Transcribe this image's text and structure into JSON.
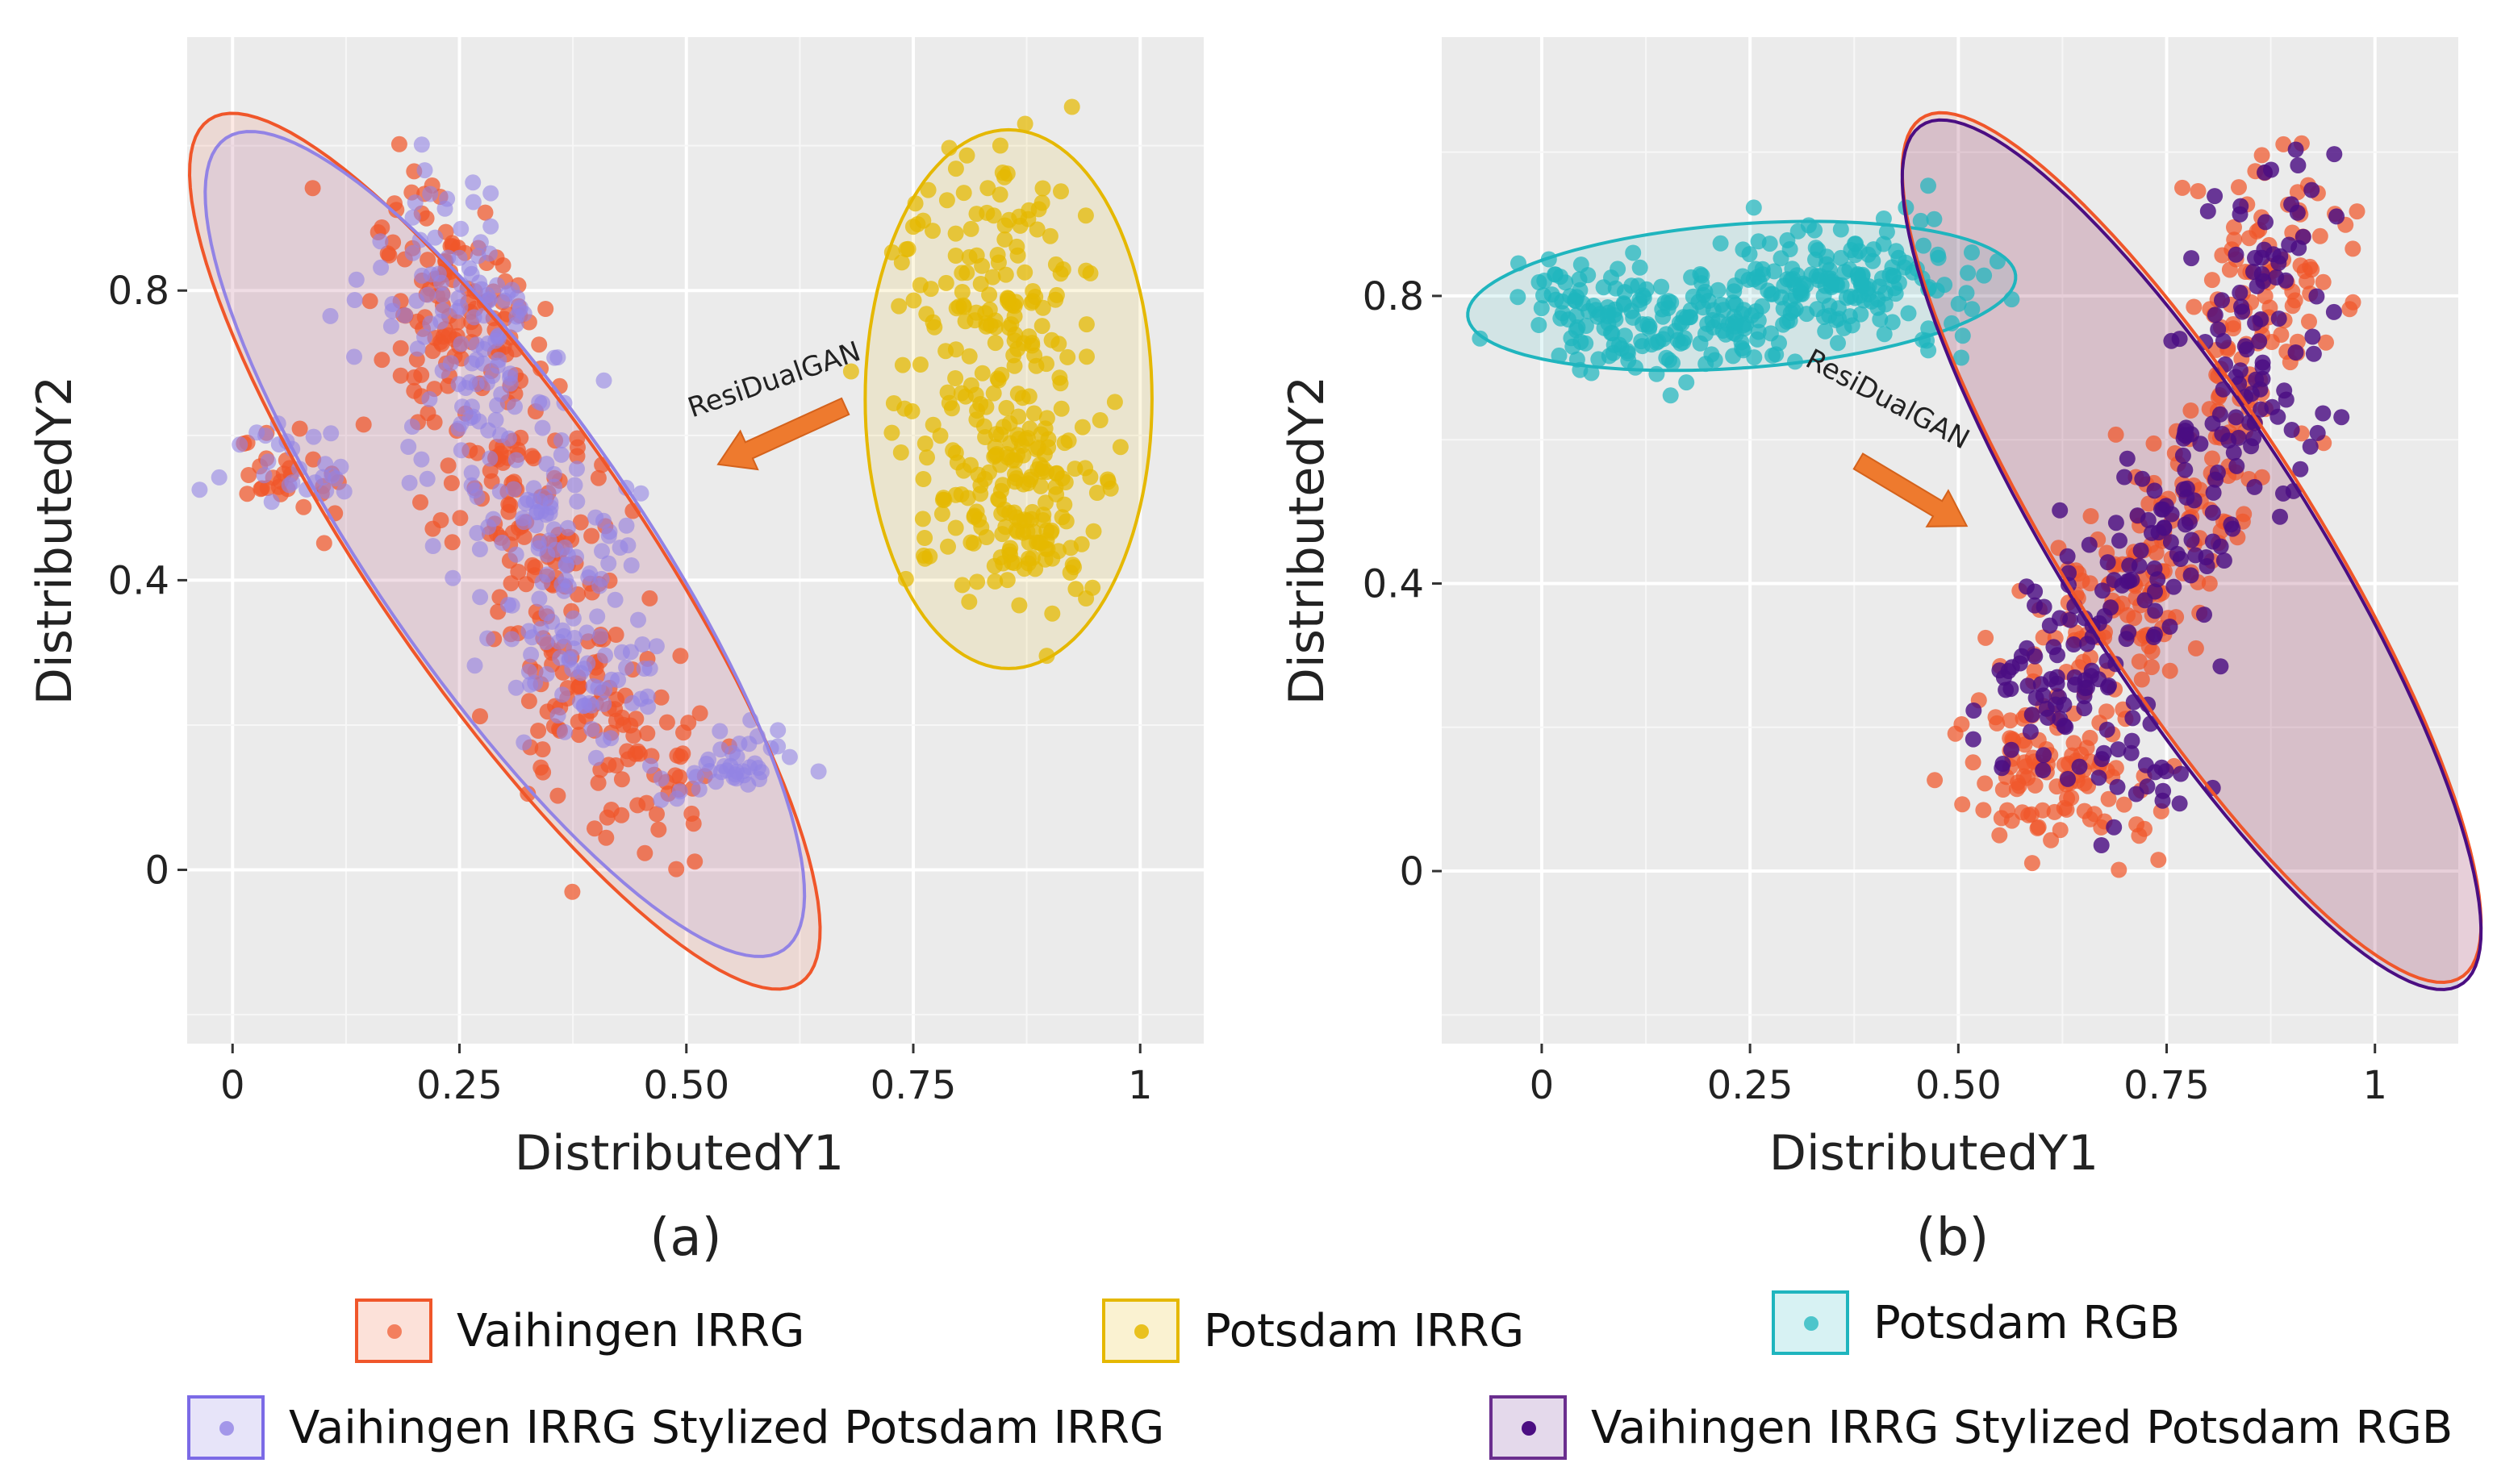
{
  "chart_data": [
    {
      "type": "scatter",
      "panel_label": "(a)",
      "xlabel": "DistributedY1",
      "ylabel": "DistributedY2",
      "xlim": [
        -0.05,
        1.07
      ],
      "ylim": [
        -0.24,
        1.15
      ],
      "xticks": [
        0,
        0.25,
        0.5,
        0.75,
        1
      ],
      "xtick_labels": [
        "0",
        "0.25",
        "0.50",
        "0.75",
        "1"
      ],
      "yticks": [
        0,
        0.4,
        0.8
      ],
      "ytick_labels": [
        "0",
        "0.4",
        "0.8"
      ],
      "annotation": {
        "text": "ResiDualGAN",
        "from": [
          0.675,
          0.64
        ],
        "to": [
          0.535,
          0.56
        ]
      },
      "series": [
        {
          "name": "Vaihingen IRRG",
          "color": "#F0562A",
          "ellipse": {
            "cx": 0.3,
            "cy": 0.44,
            "rx": 0.68,
            "ry": 0.155,
            "angle_deg": -62
          }
        },
        {
          "name": "Vaihingen IRRG Stylized Potsdam IRRG",
          "color": "#9283E5",
          "ellipse": {
            "cx": 0.3,
            "cy": 0.45,
            "rx": 0.64,
            "ry": 0.155,
            "angle_deg": -62
          }
        },
        {
          "name": "Potsdam IRRG",
          "color": "#E5B800",
          "ellipse": {
            "cx": 0.855,
            "cy": 0.65,
            "rx": 0.372,
            "ry": 0.158,
            "angle_deg": 90
          }
        }
      ]
    },
    {
      "type": "scatter",
      "panel_label": "(b)",
      "xlabel": "DistributedY1",
      "ylabel": "DistributedY2",
      "xlim": [
        -0.12,
        1.1
      ],
      "ylim": [
        -0.24,
        1.16
      ],
      "xticks": [
        0,
        0.25,
        0.5,
        0.75,
        1
      ],
      "xtick_labels": [
        "0",
        "0.25",
        "0.50",
        "0.75",
        "1"
      ],
      "yticks": [
        0,
        0.4,
        0.8
      ],
      "ytick_labels": [
        "0",
        "0.4",
        "0.8"
      ],
      "annotation": {
        "text": "ResiDualGAN",
        "from": [
          0.38,
          0.57
        ],
        "to": [
          0.51,
          0.48
        ]
      },
      "series": [
        {
          "name": "Potsdam RGB",
          "color": "#1FB5BE",
          "ellipse": {
            "cx": 0.24,
            "cy": 0.8,
            "rx": 0.33,
            "ry": 0.1,
            "angle_deg": 5
          }
        },
        {
          "name": "Vaihingen IRRG",
          "color": "#F0562A",
          "ellipse": {
            "cx": 0.78,
            "cy": 0.45,
            "rx": 0.68,
            "ry": 0.155,
            "angle_deg": -62
          }
        },
        {
          "name": "Vaihingen IRRG Stylized Potsdam RGB",
          "color": "#4B0E82",
          "ellipse": {
            "cx": 0.78,
            "cy": 0.44,
            "rx": 0.68,
            "ry": 0.155,
            "angle_deg": -62
          }
        }
      ]
    }
  ],
  "legend": {
    "items": [
      {
        "label": "Vaihingen IRRG",
        "color": "#F0562A"
      },
      {
        "label": "Potsdam IRRG",
        "color": "#E5B800"
      },
      {
        "label": "Potsdam RGB",
        "color": "#1FB5BE"
      },
      {
        "label": "Vaihingen IRRG Stylized Potsdam IRRG",
        "color": "#9283E5"
      },
      {
        "label": "Vaihingen IRRG Stylized Potsdam RGB",
        "color": "#4B0E82"
      }
    ]
  }
}
